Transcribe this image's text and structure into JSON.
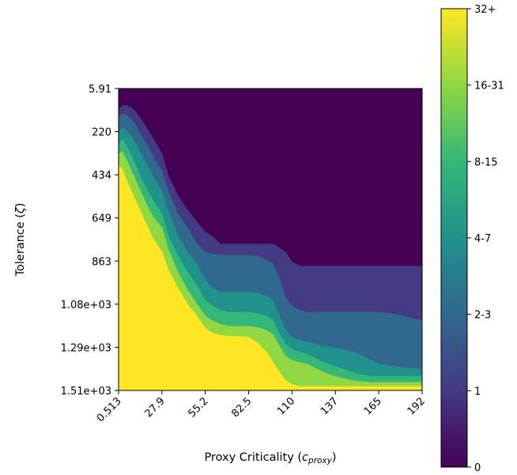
{
  "chart_data": {
    "type": "heatmap",
    "xlabel": "Proxy Criticality (",
    "xlabel_symbol": "c",
    "xlabel_subscript": "proxy",
    "xlabel_close": ")",
    "ylabel": "Tolerance (",
    "ylabel_symbol": "ζ",
    "ylabel_close": ")",
    "x_ticks": [
      "0.513",
      "27.9",
      "55.2",
      "82.5",
      "110",
      "137",
      "165",
      "192"
    ],
    "y_ticks": [
      "5.91",
      "220",
      "434",
      "649",
      "863",
      "1.08e+03",
      "1.29e+03",
      "1.51e+03"
    ],
    "xlim": [
      0.513,
      192
    ],
    "ylim": [
      5.91,
      1510
    ],
    "y_inverted": true,
    "colormap": "viridis",
    "colorbar": {
      "labels": [
        "0",
        "1",
        "2-3",
        "4-7",
        "8-15",
        "16-31",
        "32+"
      ],
      "colors": [
        "#440154",
        "#443a83",
        "#31688e",
        "#21918c",
        "#35b779",
        "#90d743",
        "#fde725"
      ]
    },
    "contours": {
      "description": "Tolerance (y) at which each level begins, as a function of proxy criticality (x)",
      "x": [
        0.513,
        3,
        6,
        10,
        14,
        18,
        22,
        27.9,
        32,
        38,
        44,
        50,
        55.2,
        60,
        65,
        70,
        76,
        82.5,
        88,
        94,
        98,
        102,
        106,
        110,
        115,
        120,
        125,
        130,
        137,
        145,
        152,
        160,
        165,
        175,
        185,
        192
      ],
      "level_boundaries": [
        {
          "from": "0",
          "to": "1",
          "y": [
            110,
            90,
            90,
            110,
            150,
            200,
            250,
            330,
            440,
            540,
            610,
            670,
            720,
            745,
            780,
            780,
            780,
            780,
            780,
            780,
            780,
            800,
            820,
            870,
            890,
            890,
            890,
            890,
            890,
            890,
            890,
            890,
            890,
            890,
            890,
            890
          ]
        },
        {
          "from": "1",
          "to": "2-3",
          "y": [
            150,
            130,
            140,
            170,
            230,
            280,
            340,
            420,
            520,
            630,
            700,
            780,
            820,
            830,
            835,
            835,
            835,
            835,
            840,
            860,
            880,
            950,
            1050,
            1090,
            1110,
            1120,
            1120,
            1120,
            1120,
            1120,
            1120,
            1120,
            1120,
            1130,
            1150,
            1160
          ]
        },
        {
          "from": "2-3",
          "to": "4-7",
          "y": [
            220,
            200,
            220,
            260,
            320,
            380,
            440,
            520,
            620,
            740,
            820,
            880,
            960,
            1000,
            1020,
            1020,
            1020,
            1020,
            1025,
            1040,
            1060,
            1140,
            1210,
            1245,
            1260,
            1270,
            1280,
            1290,
            1300,
            1310,
            1330,
            1360,
            1380,
            1390,
            1400,
            1405
          ]
        },
        {
          "from": "4-7",
          "to": "8-15",
          "y": [
            280,
            260,
            300,
            360,
            440,
            500,
            560,
            630,
            740,
            840,
            920,
            990,
            1060,
            1090,
            1110,
            1120,
            1120,
            1120,
            1125,
            1140,
            1160,
            1230,
            1280,
            1305,
            1320,
            1330,
            1350,
            1370,
            1390,
            1410,
            1430,
            1440,
            1440,
            1440,
            1440,
            1440
          ]
        },
        {
          "from": "8-15",
          "to": "16-31",
          "y": [
            330,
            320,
            370,
            440,
            510,
            580,
            640,
            700,
            810,
            920,
            1010,
            1080,
            1140,
            1165,
            1180,
            1190,
            1190,
            1190,
            1195,
            1210,
            1230,
            1290,
            1340,
            1360,
            1370,
            1380,
            1400,
            1420,
            1440,
            1455,
            1465,
            1470,
            1470,
            1470,
            1470,
            1470
          ]
        },
        {
          "from": "16-31",
          "to": "32+",
          "y": [
            390,
            410,
            470,
            540,
            610,
            680,
            750,
            820,
            910,
            1000,
            1080,
            1140,
            1200,
            1225,
            1235,
            1240,
            1240,
            1245,
            1270,
            1320,
            1370,
            1420,
            1460,
            1480,
            1490,
            1490,
            1490,
            1490,
            1490,
            1490,
            1490,
            1490,
            1490,
            1490,
            1490,
            1490
          ]
        }
      ]
    }
  }
}
